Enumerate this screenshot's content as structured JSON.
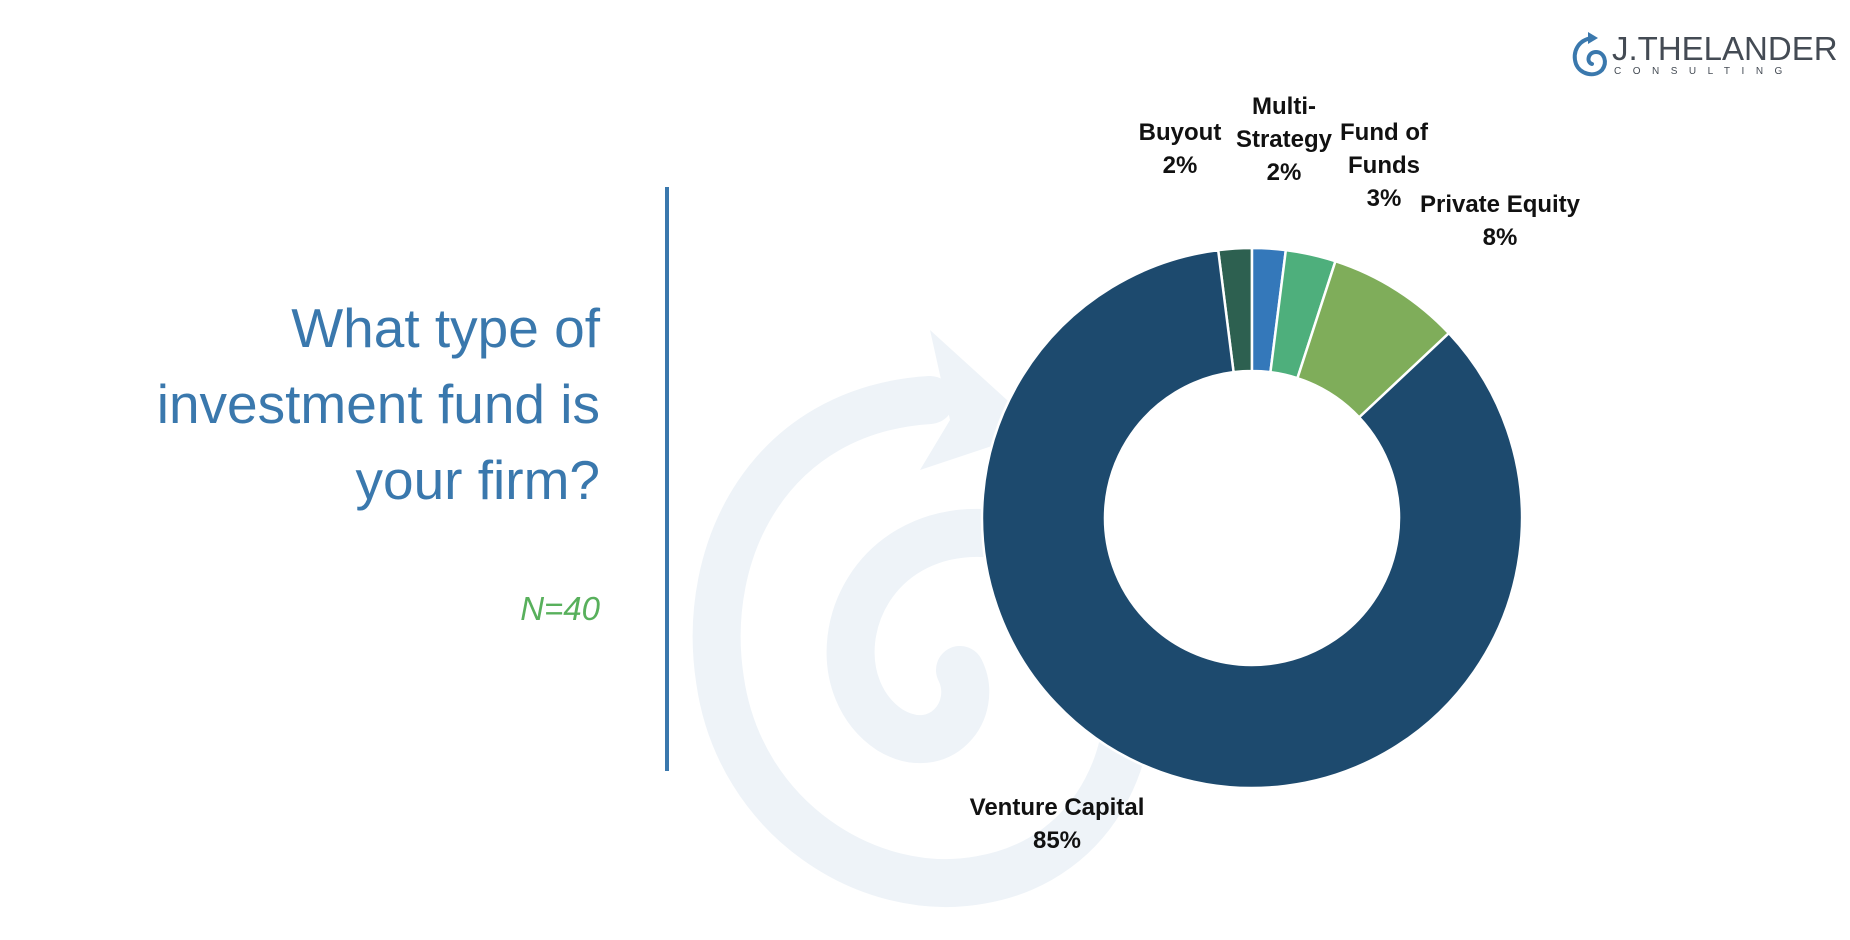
{
  "question": {
    "text": "What type of\ninvestment fund is\nyour firm?",
    "sample_size": "N=40"
  },
  "logo": {
    "name": "J.THELANDER",
    "subtitle": "CONSULTING"
  },
  "colors": {
    "accent_blue": "#3a78ad",
    "accent_green": "#58b05c"
  },
  "chart_data": {
    "type": "pie",
    "style": "donut",
    "title": "",
    "slices": [
      {
        "label": "Buyout",
        "value": 2,
        "display": "2%",
        "color": "#2d6050"
      },
      {
        "label": "Multi-Strategy",
        "value": 2,
        "display": "2%",
        "color": "#3478ba"
      },
      {
        "label": "Fund of Funds",
        "value": 3,
        "display": "3%",
        "color": "#4eaf7c"
      },
      {
        "label": "Private Equity",
        "value": 8,
        "display": "8%",
        "color": "#7fad5a"
      },
      {
        "label": "Venture Capital",
        "value": 85,
        "display": "85%",
        "color": "#1d4a6e"
      }
    ]
  }
}
